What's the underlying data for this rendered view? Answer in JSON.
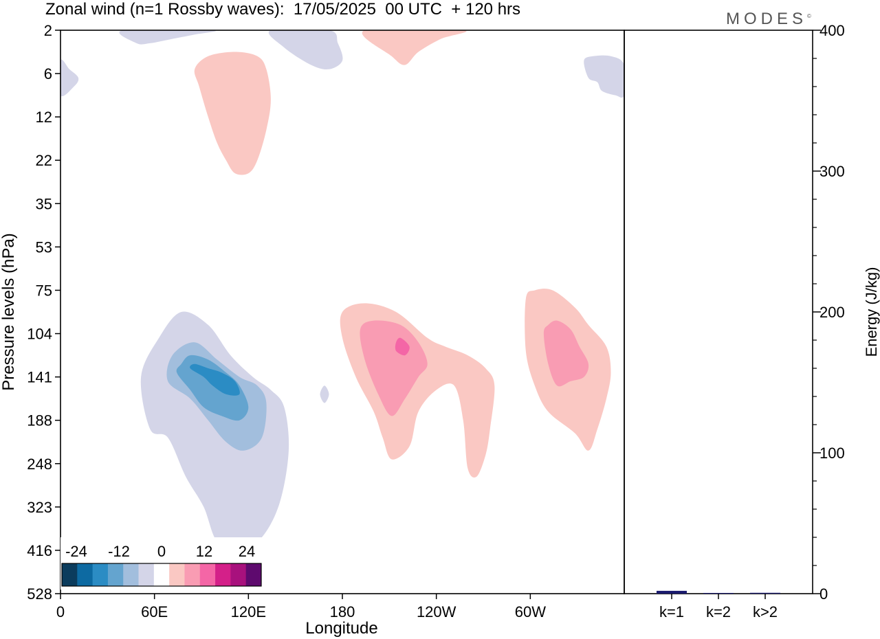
{
  "title": "Zonal wind (n=1 Rossby waves):  17/05/2025  00 UTC  + 120 hrs",
  "brand": "MODES",
  "brand_mark": "©",
  "chart_data": [
    {
      "type": "heatmap",
      "xlabel": "Longitude",
      "ylabel": "Pressure levels (hPa)",
      "x_ticks": [
        "0",
        "60E",
        "120E",
        "180",
        "120W",
        "60W"
      ],
      "y_ticks": [
        "2",
        "6",
        "12",
        "22",
        "35",
        "53",
        "75",
        "104",
        "141",
        "188",
        "248",
        "323",
        "416",
        "528"
      ],
      "colorbar": {
        "labels": [
          "-24",
          "-12",
          "0",
          "12",
          "24"
        ],
        "colors": [
          "#0b3c5d",
          "#0d6aa2",
          "#2b8cc4",
          "#64a4cf",
          "#a2bedd",
          "#d4d5e8",
          "#ffffff",
          "#fac8c3",
          "#f99cb3",
          "#f466a6",
          "#d42089",
          "#a8117d",
          "#5e0a6e"
        ]
      },
      "contours": [
        {
          "name": "neg-west-large",
          "value": -3,
          "color": "#d4d5e8",
          "points": [
            [
              20,
              92
            ],
            [
              24,
              94
            ],
            [
              28,
              103
            ],
            [
              32,
              110
            ],
            [
              35,
              118
            ],
            [
              40,
              120
            ],
            [
              45,
              117
            ],
            [
              49,
              109
            ],
            [
              51,
              97
            ],
            [
              50,
              87
            ],
            [
              47,
              83
            ],
            [
              43,
              80
            ],
            [
              38,
              75
            ],
            [
              33,
              68
            ],
            [
              27,
              65
            ],
            [
              22,
              71
            ],
            [
              18,
              80
            ]
          ]
        },
        {
          "name": "neg-west-mid",
          "value": -6,
          "color": "#a2bedd",
          "points": [
            [
              24,
              81
            ],
            [
              29,
              85
            ],
            [
              33,
              90
            ],
            [
              37,
              95
            ],
            [
              41,
              97
            ],
            [
              45,
              94
            ],
            [
              46,
              86
            ],
            [
              44,
              82
            ],
            [
              40,
              80
            ],
            [
              35,
              76
            ],
            [
              30,
              72
            ],
            [
              25,
              75
            ]
          ]
        },
        {
          "name": "neg-west-inner",
          "value": -9,
          "color": "#64a4cf",
          "points": [
            [
              26,
              79
            ],
            [
              29,
              83
            ],
            [
              32,
              87
            ],
            [
              36,
              89
            ],
            [
              40,
              90
            ],
            [
              42,
              87
            ],
            [
              40,
              82
            ],
            [
              37,
              79
            ],
            [
              33,
              76
            ],
            [
              29,
              75
            ],
            [
              27,
              77
            ]
          ]
        },
        {
          "name": "neg-west-core",
          "value": -12,
          "color": "#2b8cc4",
          "points": [
            [
              29,
              78
            ],
            [
              32,
              80
            ],
            [
              34,
              82
            ],
            [
              37,
              84
            ],
            [
              40,
              84
            ],
            [
              39,
              81
            ],
            [
              36,
              79
            ],
            [
              33,
              78
            ],
            [
              30,
              77
            ]
          ]
        },
        {
          "name": "pos-mid-outer",
          "value": 3,
          "color": "#fac8c3",
          "points": [
            [
              66,
              80
            ],
            [
              70,
              88
            ],
            [
              72,
              94
            ],
            [
              74,
              99
            ],
            [
              78,
              96
            ],
            [
              80,
              88
            ],
            [
              84,
              83
            ],
            [
              88,
              82
            ],
            [
              90,
              90
            ],
            [
              91,
              101
            ],
            [
              93,
              103
            ],
            [
              95,
              98
            ],
            [
              96,
              92
            ],
            [
              97,
              82
            ],
            [
              95,
              78
            ],
            [
              91,
              75
            ],
            [
              86,
              73
            ],
            [
              82,
              71
            ],
            [
              75,
              65
            ],
            [
              68,
              63
            ],
            [
              63,
              65
            ],
            [
              63,
              71
            ]
          ]
        },
        {
          "name": "pos-mid-inner",
          "value": 6,
          "color": "#f99cb3",
          "points": [
            [
              68,
              76
            ],
            [
              71,
              84
            ],
            [
              74,
              89
            ],
            [
              77,
              85
            ],
            [
              80,
              80
            ],
            [
              82,
              77
            ],
            [
              80,
              72
            ],
            [
              76,
              68
            ],
            [
              70,
              67
            ],
            [
              67,
              69
            ]
          ]
        },
        {
          "name": "pos-mid-core",
          "value": 9,
          "color": "#f466a6",
          "points": [
            [
              75,
              74
            ],
            [
              77,
              75
            ],
            [
              78,
              73
            ],
            [
              76,
              71
            ],
            [
              75,
              72
            ]
          ]
        },
        {
          "name": "pos-east-outer",
          "value": 3,
          "color": "#fac8c3",
          "points": [
            [
              104,
              62
            ],
            [
              104,
              74
            ],
            [
              106,
              82
            ],
            [
              109,
              88
            ],
            [
              115,
              93
            ],
            [
              118,
              97
            ],
            [
              120,
              92
            ],
            [
              122,
              85
            ],
            [
              123,
              79
            ],
            [
              122,
              73
            ],
            [
              118,
              68
            ],
            [
              115,
              64
            ],
            [
              110,
              60
            ],
            [
              106,
              60
            ]
          ]
        },
        {
          "name": "pos-east-inner",
          "value": 6,
          "color": "#f99cb3",
          "points": [
            [
              108,
              70
            ],
            [
              109,
              77
            ],
            [
              111,
              82
            ],
            [
              114,
              81
            ],
            [
              117,
              80
            ],
            [
              118,
              77
            ],
            [
              116,
              73
            ],
            [
              114,
              69
            ],
            [
              111,
              67
            ],
            [
              109,
              68
            ]
          ]
        },
        {
          "name": "pos-upper-center",
          "value": 3,
          "color": "#fac8c3",
          "points": [
            [
              31,
              13
            ],
            [
              33,
              20
            ],
            [
              35,
              26
            ],
            [
              37,
              30
            ],
            [
              39,
              33
            ],
            [
              42,
              33
            ],
            [
              44,
              30
            ],
            [
              46,
              23
            ],
            [
              47,
              16
            ],
            [
              46,
              9
            ],
            [
              44,
              6
            ],
            [
              39,
              5
            ],
            [
              33,
              6
            ],
            [
              30,
              9
            ]
          ]
        },
        {
          "name": "pos-top-right",
          "value": 3,
          "color": "#fac8c3",
          "points": [
            [
              68,
              0
            ],
            [
              74,
              6
            ],
            [
              77,
              8
            ],
            [
              80,
              5
            ],
            [
              85,
              2
            ],
            [
              90,
              0
            ]
          ]
        },
        {
          "name": "neg-top-mid",
          "value": -3,
          "color": "#d4d5e8",
          "points": [
            [
              47,
              0
            ],
            [
              50,
              4
            ],
            [
              56,
              8
            ],
            [
              60,
              9
            ],
            [
              63,
              7
            ],
            [
              62,
              3
            ],
            [
              60,
              0
            ]
          ]
        },
        {
          "name": "neg-top-left",
          "value": -3,
          "color": "#d4d5e8",
          "points": [
            [
              14,
              0
            ],
            [
              17,
              3
            ],
            [
              20,
              3
            ],
            [
              25,
              2
            ],
            [
              30,
              1
            ],
            [
              34,
              0
            ]
          ]
        },
        {
          "name": "neg-far-west",
          "value": -3,
          "color": "#d4d5e8",
          "points": [
            [
              0,
              7
            ],
            [
              2,
              9
            ],
            [
              4,
              11
            ],
            [
              3,
              13
            ],
            [
              0,
              15
            ]
          ]
        },
        {
          "name": "neg-far-east",
          "value": -3,
          "color": "#d4d5e8",
          "points": [
            [
              117,
              7
            ],
            [
              118,
              11
            ],
            [
              120,
              12
            ],
            [
              121,
              14
            ],
            [
              124,
              15
            ],
            [
              126,
              15
            ],
            [
              126,
              8
            ],
            [
              123,
              6
            ],
            [
              119,
              6
            ]
          ]
        },
        {
          "name": "neg-small-mid",
          "value": -3,
          "color": "#d4d5e8",
          "points": [
            [
              58,
              84
            ],
            [
              59,
              86
            ],
            [
              60,
              84
            ],
            [
              59,
              82
            ]
          ]
        }
      ]
    },
    {
      "type": "bar",
      "categories": [
        "k=1",
        "k=2",
        "k>2"
      ],
      "values": [
        2,
        0.5,
        0.6
      ],
      "ylabel": "Energy (J/kg)",
      "y_ticks": [
        "0",
        "100",
        "200",
        "300",
        "400"
      ],
      "ylim": [
        0,
        400
      ],
      "bar_color": "#1a1a6e"
    }
  ]
}
